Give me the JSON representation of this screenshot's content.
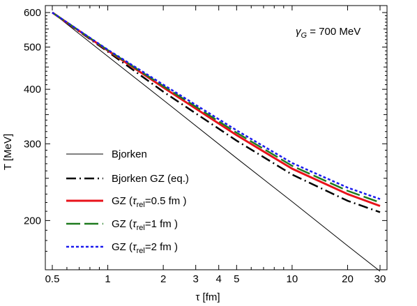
{
  "chart_data": {
    "type": "line",
    "x_scale": "log",
    "y_scale": "log",
    "xlim": [
      0.5,
      30
    ],
    "ylim": [
      160,
      600
    ],
    "xlabel": "τ [fm]",
    "ylabel": "T [MeV]",
    "x_ticks": [
      0.5,
      1,
      2,
      3,
      4,
      5,
      10,
      20,
      30
    ],
    "x_tick_labels": [
      "0.5",
      "1",
      "2",
      "3",
      "4",
      "5",
      "10",
      "20",
      "30"
    ],
    "y_ticks": [
      200,
      300,
      400,
      500,
      600
    ],
    "y_tick_labels": [
      "200",
      "300",
      "400",
      "500",
      "600"
    ],
    "annotation": {
      "symbol": "γ",
      "subscript": "G",
      "text": " = 700 MeV"
    },
    "legend_position": "bottom-left",
    "series": [
      {
        "name": "Bjorken",
        "color": "#000000",
        "dash": "solid",
        "x": [
          0.5,
          1,
          2,
          5,
          10,
          20,
          30
        ],
        "y": [
          600,
          476,
          378,
          278,
          221,
          175,
          153
        ]
      },
      {
        "name": "Bjorken GZ (eq.)",
        "color": "#000000",
        "dash": "dashdot",
        "x": [
          0.5,
          1,
          2,
          5,
          10,
          20,
          30
        ],
        "y": [
          600,
          488,
          395,
          305,
          255,
          222,
          209
        ]
      },
      {
        "name": "GZ (τrel=0.5 fm )",
        "color": "#e8121a",
        "dash": "solid",
        "x": [
          0.5,
          1,
          2,
          5,
          10,
          20,
          30
        ],
        "y": [
          600,
          491,
          404,
          314,
          263,
          230,
          216
        ]
      },
      {
        "name": "GZ (τrel=1 fm )",
        "color": "#1e7a1e",
        "dash": "longdash",
        "x": [
          0.5,
          1,
          2,
          5,
          10,
          20,
          30
        ],
        "y": [
          600,
          492,
          407,
          318,
          267,
          234,
          220
        ]
      },
      {
        "name": "GZ (τrel=2 fm )",
        "color": "#1a1aee",
        "dash": "dotted",
        "x": [
          0.5,
          1,
          2,
          5,
          10,
          20,
          30
        ],
        "y": [
          600,
          493,
          410,
          322,
          271,
          238,
          224
        ]
      }
    ]
  },
  "legend": {
    "bjorken": "Bjorken",
    "bjorken_gz": "Bjorken GZ (eq.)",
    "gz_prefix": "GZ (",
    "tau": "τ",
    "rel": "rel",
    "gz1_suffix": "=0.5 fm )",
    "gz2_suffix": "=1 fm )",
    "gz3_suffix": "=2 fm )"
  }
}
